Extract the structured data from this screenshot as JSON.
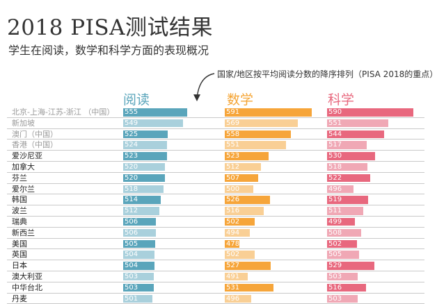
{
  "title": "2018 PISA测试结果",
  "subtitle": "学生在阅读，数学和科学方面的表现概况",
  "note": "国家/地区按平均阅读分数的降序排列（PISA 2018的重点）",
  "colors": {
    "reading_dark": "#5aa5bb",
    "reading_light": "#a9d0dc",
    "math_dark": "#f6a53a",
    "math_light": "#f9cf95",
    "science_dark": "#e8687e",
    "science_light": "#f0a8b5"
  },
  "chart_data": {
    "type": "bar",
    "orientation": "horizontal",
    "series": [
      {
        "name": "阅读",
        "values": [
          555,
          549,
          525,
          524,
          523,
          520,
          520,
          518,
          514,
          512,
          506,
          506,
          505,
          504,
          504,
          503,
          503,
          501
        ]
      },
      {
        "name": "数学",
        "values": [
          591,
          569,
          558,
          551,
          523,
          512,
          507,
          500,
          526,
          516,
          502,
          494,
          478,
          502,
          527,
          491,
          531,
          496
        ]
      },
      {
        "name": "科学",
        "values": [
          590,
          551,
          544,
          517,
          530,
          518,
          522,
          496,
          519,
          511,
          499,
          508,
          502,
          505,
          529,
          503,
          516,
          503
        ]
      }
    ],
    "categories": [
      {
        "label": "北京-上海-江苏-浙江 （中国）",
        "shade": "dark"
      },
      {
        "label": "新加坡",
        "shade": "light"
      },
      {
        "label": "澳门（中国）",
        "shade": "dark"
      },
      {
        "label": "香港（中国）",
        "shade": "light"
      },
      {
        "label": "爱沙尼亚",
        "shade": "dark"
      },
      {
        "label": "加拿大",
        "shade": "light"
      },
      {
        "label": "芬兰",
        "shade": "dark"
      },
      {
        "label": "爱尔兰",
        "shade": "light"
      },
      {
        "label": "韩国",
        "shade": "dark"
      },
      {
        "label": "波兰",
        "shade": "light"
      },
      {
        "label": "瑞典",
        "shade": "dark"
      },
      {
        "label": "新西兰",
        "shade": "light"
      },
      {
        "label": "美国",
        "shade": "dark"
      },
      {
        "label": "英国",
        "shade": "light"
      },
      {
        "label": "日本",
        "shade": "dark"
      },
      {
        "label": "澳大利亚",
        "shade": "light"
      },
      {
        "label": "中华台北",
        "shade": "dark"
      },
      {
        "label": "丹麦",
        "shade": "light"
      }
    ]
  }
}
